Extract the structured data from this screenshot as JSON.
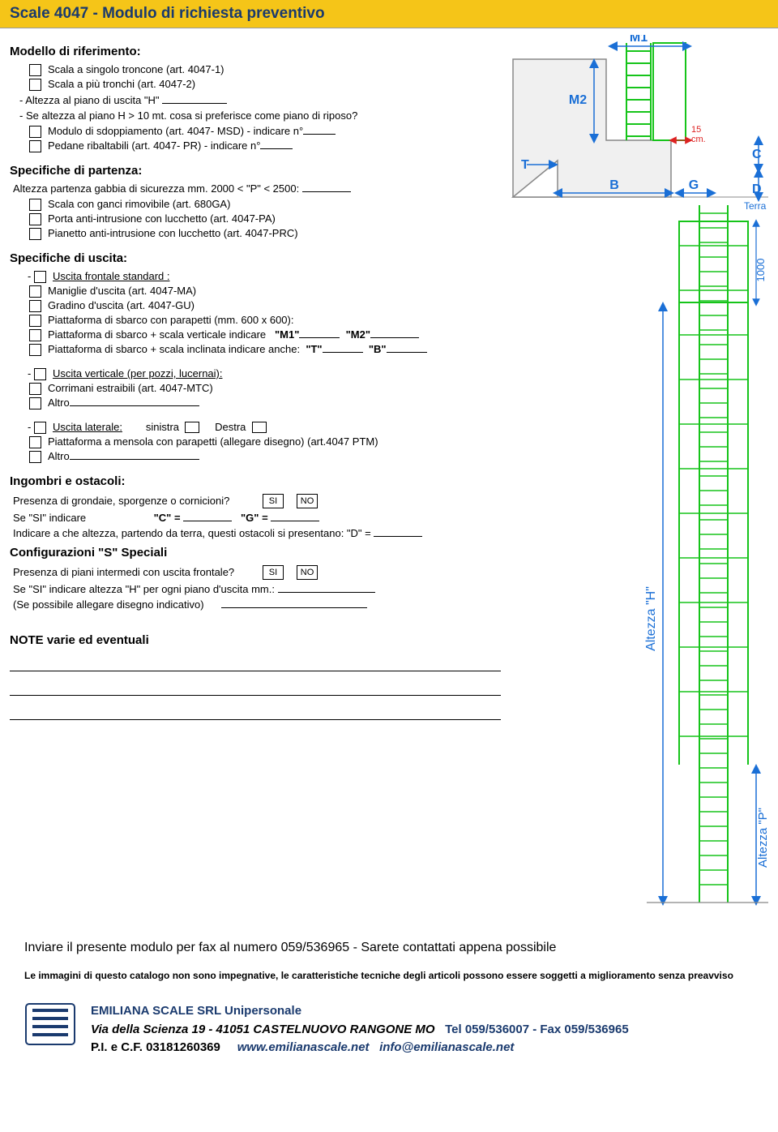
{
  "header": {
    "title": "Scale 4047 - Modulo di richiesta preventivo"
  },
  "modello": {
    "heading": "Modello di riferimento:",
    "opt1": "Scala a singolo troncone (art. 4047-1)",
    "opt2": "Scala a più tronchi  (art. 4047-2)",
    "altezzaH": "- Altezza al piano di uscita \"H\"",
    "altezzaH10": "- Se altezza al piano H > 10 mt. cosa si preferisce come piano di riposo?",
    "msd": "Modulo di sdoppiamento (art. 4047- MSD) - indicare n°",
    "pr": "Pedane ribaltabili (art. 4047- PR) - indicare n°"
  },
  "partenza": {
    "heading": "Specifiche di partenza:",
    "gabbia": "Altezza partenza gabbia di sicurezza  mm. 2000 < \"P\" < 2500:",
    "opt1": "Scala con ganci rimovibile (art. 680GA)",
    "opt2": "Porta anti-intrusione con lucchetto (art. 4047-PA)",
    "opt3": "Pianetto anti-intrusione con lucchetto (art. 4047-PRC)"
  },
  "uscita": {
    "heading": "Specifiche di uscita:",
    "frontale": "Uscita frontale  standard :",
    "maniglie": "Maniglie d'uscita (art. 4047-MA)",
    "gradino": "Gradino d'uscita (art. 4047-GU)",
    "piattaforma": "Piattaforma di sbarco con parapetti  (mm. 600 x 600):",
    "verticale": "Piattaforma di sbarco + scala verticale  indicare",
    "m1": "\"M1\"",
    "m2": "\"M2\"",
    "inclinata": "Piattaforma di sbarco + scala inclinata indicare anche:",
    "t": "\"T\"",
    "b": "\"B\"",
    "uscitaVerticale": "Uscita verticale (per pozzi, lucernai):",
    "corrimani": "Corrimani estraibili  (art. 4047-MTC)",
    "altro": "Altro",
    "laterale": "Uscita laterale:",
    "sinistra": "sinistra",
    "destra": "Destra",
    "mensola": "Piattaforma a mensola  con parapetti (allegare disegno) (art.4047 PTM)"
  },
  "ingombri": {
    "heading": "Ingombri e ostacoli:",
    "grondaie": "Presenza di grondaie, sporgenze o cornicioni?",
    "si": "SI",
    "no": "NO",
    "seSi": "Se \"SI\" indicare",
    "cEq": "\"C\" =",
    "gEq": "\"G\" =",
    "altezzaD": "Indicare a che altezza, partendo da terra, questi ostacoli si presentano: \"D\" ="
  },
  "config": {
    "heading": "Configurazioni \"S\" Speciali",
    "piani": "Presenza di piani intermedi con uscita frontale?",
    "si": "SI",
    "no": "NO",
    "seSiH": "Se \"SI\" indicare altezza \"H\" per ogni piano d'uscita mm.:",
    "allegare": "(Se possibile allegare disegno indicativo)"
  },
  "note": {
    "heading": "NOTE varie ed eventuali"
  },
  "footer": {
    "send": "Inviare il presente modulo per fax al numero 059/536965 - Sarete contattati appena possibile",
    "disclaimer": "Le immagini di questo catalogo non sono impegnative, le caratteristiche tecniche degli articoli possono essere soggetti a miglioramento senza preavviso",
    "company": "EMILIANA SCALE SRL Unipersonale",
    "addr": "Via della Scienza 19 - 41051 CASTELNUOVO RANGONE MO",
    "tel": "Tel 059/536007 - Fax 059/536965",
    "pi": "P.I. e C.F. 03181260369",
    "www": "www.emilianascale.net",
    "email": "info@emilianascale.net"
  },
  "diagram": {
    "labels": {
      "M1": "M1",
      "M2": "M2",
      "T": "T",
      "B": "B",
      "G": "G",
      "C": "C",
      "D": "D",
      "Terra": "Terra",
      "cm15": "15 cm.",
      "mille": "1000",
      "altezzaH": "Altezza \"H\"",
      "altezzaP": "Altezza \"P\""
    },
    "colors": {
      "ladder": "#16c41a",
      "dim": "#1a6fd6",
      "red": "#d22",
      "wall": "#999",
      "text": "#1a6fd6"
    }
  }
}
